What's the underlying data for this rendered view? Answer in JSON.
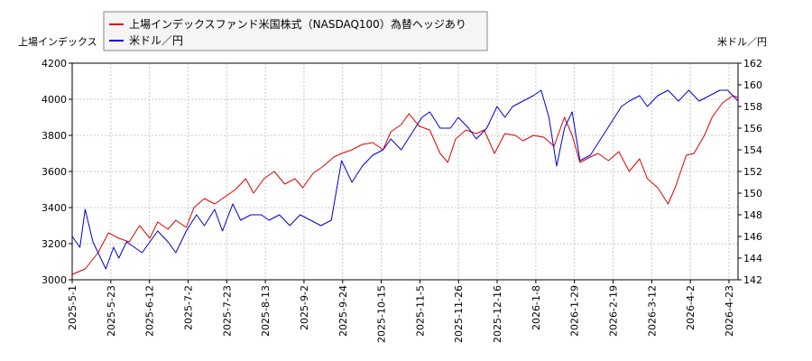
{
  "chart_data": {
    "type": "line",
    "left_axis_label": "上場インデックス",
    "right_axis_label": "米ドル／円",
    "x_ticks": [
      "2025-5-1",
      "2025-5-23",
      "2025-6-12",
      "2025-7-2",
      "2025-7-23",
      "2025-8-13",
      "2025-9-2",
      "2025-9-24",
      "2025-10-15",
      "2025-11-5",
      "2025-11-26",
      "2025-12-16",
      "2026-1-8",
      "2026-1-29",
      "2026-2-19",
      "2026-3-12",
      "2026-4-2",
      "2026-4-23"
    ],
    "left_ylim": [
      3000,
      4200
    ],
    "left_ticks": [
      "3000",
      "3200",
      "3400",
      "3600",
      "3800",
      "4000",
      "4200"
    ],
    "right_ylim": [
      142,
      162
    ],
    "right_ticks": [
      "142",
      "144",
      "146",
      "148",
      "150",
      "152",
      "154",
      "156",
      "158",
      "160",
      "162"
    ],
    "grid": true,
    "legend_position": "top",
    "series": [
      {
        "name": "上場インデックスファンド米国株式（NASDAQ100）為替ヘッジあり",
        "axis": "left",
        "color": "#dd0000",
        "values": [
          [
            0,
            3030
          ],
          [
            5,
            3060
          ],
          [
            10,
            3150
          ],
          [
            14,
            3260
          ],
          [
            18,
            3230
          ],
          [
            22,
            3210
          ],
          [
            26,
            3300
          ],
          [
            30,
            3230
          ],
          [
            33,
            3320
          ],
          [
            37,
            3280
          ],
          [
            40,
            3330
          ],
          [
            44,
            3290
          ],
          [
            47,
            3400
          ],
          [
            51,
            3450
          ],
          [
            55,
            3420
          ],
          [
            59,
            3460
          ],
          [
            63,
            3500
          ],
          [
            67,
            3560
          ],
          [
            70,
            3480
          ],
          [
            74,
            3560
          ],
          [
            78,
            3600
          ],
          [
            82,
            3530
          ],
          [
            86,
            3560
          ],
          [
            89,
            3510
          ],
          [
            93,
            3590
          ],
          [
            97,
            3630
          ],
          [
            101,
            3680
          ],
          [
            104,
            3700
          ],
          [
            108,
            3720
          ],
          [
            112,
            3750
          ],
          [
            116,
            3760
          ],
          [
            120,
            3720
          ],
          [
            123,
            3820
          ],
          [
            127,
            3860
          ],
          [
            130,
            3920
          ],
          [
            134,
            3850
          ],
          [
            138,
            3830
          ],
          [
            142,
            3700
          ],
          [
            145,
            3650
          ],
          [
            148,
            3780
          ],
          [
            152,
            3830
          ],
          [
            156,
            3810
          ],
          [
            159,
            3830
          ],
          [
            163,
            3700
          ],
          [
            167,
            3810
          ],
          [
            171,
            3800
          ],
          [
            174,
            3770
          ],
          [
            178,
            3800
          ],
          [
            182,
            3790
          ],
          [
            186,
            3740
          ],
          [
            190,
            3900
          ],
          [
            193,
            3800
          ],
          [
            196,
            3650
          ],
          [
            200,
            3680
          ],
          [
            203,
            3700
          ],
          [
            207,
            3660
          ],
          [
            211,
            3710
          ],
          [
            215,
            3600
          ],
          [
            219,
            3670
          ],
          [
            222,
            3560
          ],
          [
            226,
            3510
          ],
          [
            230,
            3420
          ],
          [
            233,
            3520
          ],
          [
            237,
            3690
          ],
          [
            240,
            3700
          ],
          [
            244,
            3800
          ],
          [
            247,
            3900
          ],
          [
            251,
            3980
          ],
          [
            255,
            4020
          ],
          [
            257,
            4010
          ]
        ]
      },
      {
        "name": "米ドル／円",
        "axis": "right",
        "color": "#0000cc",
        "values": [
          [
            0,
            146
          ],
          [
            3,
            145
          ],
          [
            5,
            148.5
          ],
          [
            8,
            145.5
          ],
          [
            11,
            144
          ],
          [
            13,
            143
          ],
          [
            16,
            145
          ],
          [
            18,
            144
          ],
          [
            21,
            145.5
          ],
          [
            24,
            145
          ],
          [
            27,
            144.5
          ],
          [
            30,
            145.5
          ],
          [
            33,
            146.5
          ],
          [
            37,
            145.5
          ],
          [
            40,
            144.5
          ],
          [
            44,
            146.5
          ],
          [
            48,
            148
          ],
          [
            51,
            147
          ],
          [
            55,
            148.5
          ],
          [
            58,
            146.5
          ],
          [
            62,
            149
          ],
          [
            65,
            147.5
          ],
          [
            69,
            148
          ],
          [
            73,
            148
          ],
          [
            76,
            147.5
          ],
          [
            80,
            148
          ],
          [
            84,
            147
          ],
          [
            88,
            148
          ],
          [
            92,
            147.5
          ],
          [
            96,
            147
          ],
          [
            100,
            147.5
          ],
          [
            104,
            153
          ],
          [
            108,
            151
          ],
          [
            112,
            152.5
          ],
          [
            116,
            153.5
          ],
          [
            120,
            154
          ],
          [
            123,
            155
          ],
          [
            127,
            154
          ],
          [
            131,
            155.5
          ],
          [
            135,
            157
          ],
          [
            138,
            157.5
          ],
          [
            142,
            156
          ],
          [
            146,
            156
          ],
          [
            149,
            157
          ],
          [
            153,
            156
          ],
          [
            156,
            155
          ],
          [
            160,
            156
          ],
          [
            164,
            158
          ],
          [
            167,
            157
          ],
          [
            170,
            158
          ],
          [
            174,
            158.5
          ],
          [
            178,
            159
          ],
          [
            181,
            159.5
          ],
          [
            184,
            157
          ],
          [
            187,
            152.5
          ],
          [
            190,
            156
          ],
          [
            193,
            157.5
          ],
          [
            196,
            153
          ],
          [
            200,
            153.5
          ],
          [
            204,
            155
          ],
          [
            208,
            156.5
          ],
          [
            212,
            158
          ],
          [
            215,
            158.5
          ],
          [
            219,
            159
          ],
          [
            222,
            158
          ],
          [
            226,
            159
          ],
          [
            230,
            159.5
          ],
          [
            234,
            158.5
          ],
          [
            238,
            159.5
          ],
          [
            242,
            158.5
          ],
          [
            246,
            159
          ],
          [
            250,
            159.5
          ],
          [
            253,
            159.5
          ],
          [
            257,
            158.5
          ]
        ]
      }
    ]
  }
}
